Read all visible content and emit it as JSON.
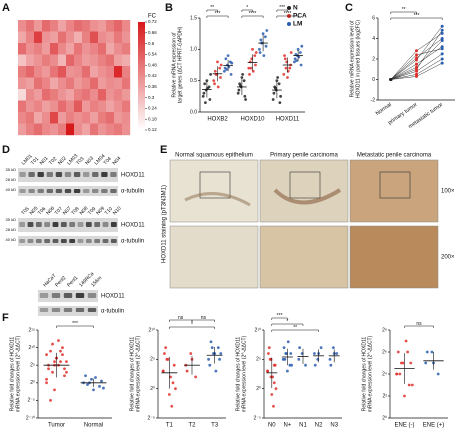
{
  "figure": {
    "panel_labels": [
      "A",
      "B",
      "C",
      "D",
      "E",
      "F"
    ],
    "blots": {
      "lanes_1": [
        "LM01",
        "T01",
        "N01",
        "T02",
        "N02",
        "LM03",
        "T03",
        "N03",
        "LM04",
        "T04",
        "N04"
      ],
      "lanes_2": [
        "T05",
        "N05",
        "T06",
        "N06",
        "T07",
        "N07",
        "T08",
        "N08",
        "T09",
        "N09",
        "T10",
        "N10"
      ],
      "lanes_3": [
        "HaCaT",
        "Penl2",
        "Penl1",
        "149RCa",
        "156m"
      ],
      "proteins": [
        "HOXD11",
        "α-tubulin"
      ],
      "markers": [
        "35 kD",
        "28 kD",
        "40 kD"
      ]
    },
    "ihc": {
      "columns": [
        "Normal squamous epithelium",
        "Primary penile carcinoma",
        "Metastatic penile carcinoma"
      ],
      "magnifications": [
        "100×",
        "200×"
      ],
      "side_label": "HOXD11 staining (pT3N3M1)"
    }
  },
  "chart_data": [
    {
      "type": "heatmap",
      "colorbar_title": "FC",
      "vlim": [
        0.12,
        0.72
      ],
      "colorbar_ticks": [
        0.72,
        0.66,
        0.6,
        0.54,
        0.48,
        0.42,
        0.36,
        0.3,
        0.24,
        0.18,
        0.12
      ],
      "colors": [
        "#ffffff",
        "#d7191c"
      ],
      "values": [
        [
          0.42,
          0.48,
          0.39,
          0.51,
          0.45,
          0.36,
          0.44,
          0.5,
          0.47,
          0.41,
          0.38,
          0.46,
          0.52,
          0.43
        ],
        [
          0.35,
          0.44,
          0.62,
          0.4,
          0.37,
          0.49,
          0.41,
          0.33,
          0.45,
          0.58,
          0.42,
          0.39,
          0.47,
          0.4
        ],
        [
          0.5,
          0.41,
          0.45,
          0.38,
          0.55,
          0.43,
          0.36,
          0.48,
          0.4,
          0.44,
          0.5,
          0.35,
          0.42,
          0.46
        ],
        [
          0.28,
          0.36,
          0.4,
          0.46,
          0.42,
          0.31,
          0.52,
          0.44,
          0.38,
          0.4,
          0.45,
          0.49,
          0.37,
          0.34
        ],
        [
          0.46,
          0.52,
          0.43,
          0.39,
          0.48,
          0.56,
          0.4,
          0.42,
          0.5,
          0.36,
          0.41,
          0.44,
          0.68,
          0.45
        ],
        [
          0.4,
          0.37,
          0.49,
          0.44,
          0.35,
          0.42,
          0.47,
          0.39,
          0.43,
          0.51,
          0.38,
          0.42,
          0.4,
          0.48
        ],
        [
          0.22,
          0.43,
          0.38,
          0.5,
          0.46,
          0.4,
          0.36,
          0.45,
          0.48,
          0.42,
          0.53,
          0.4,
          0.44,
          0.39
        ],
        [
          0.48,
          0.4,
          0.44,
          0.37,
          0.41,
          0.5,
          0.43,
          0.55,
          0.39,
          0.45,
          0.42,
          0.36,
          0.41,
          0.47
        ],
        [
          0.43,
          0.47,
          0.35,
          0.42,
          0.6,
          0.38,
          0.45,
          0.41,
          0.44,
          0.37,
          0.46,
          0.5,
          0.39,
          0.42
        ],
        [
          0.38,
          0.45,
          0.5,
          0.43,
          0.4,
          0.46,
          0.72,
          0.42,
          0.36,
          0.48,
          0.4,
          0.44,
          0.47,
          0.41
        ]
      ]
    },
    {
      "type": "strip",
      "ylabel": [
        "Relative mRNA expression of",
        "target genes (ΔCT HPRT-GAPDH)"
      ],
      "categories": [
        "HOXB2",
        "HOXD10",
        "HOXD11"
      ],
      "ylim": [
        0,
        1.5
      ],
      "yticks": [
        {
          "value": 0,
          "label": "0.0"
        },
        {
          "value": 0.5,
          "label": "0.5"
        },
        {
          "value": 1,
          "label": "1.0"
        },
        {
          "value": 1.5,
          "label": "1.5"
        }
      ],
      "legend": "top-right",
      "series": [
        {
          "name": "N",
          "color": "#222222",
          "values": [
            [
              0.25,
              0.35,
              0.4,
              0.3,
              0.5,
              0.2,
              0.45,
              0.38,
              0.6,
              0.15
            ],
            [
              0.3,
              0.4,
              0.5,
              0.35,
              0.55,
              0.25,
              0.45,
              0.6,
              0.2,
              0.42
            ],
            [
              0.2,
              0.35,
              0.45,
              0.3,
              0.5,
              0.15,
              0.4,
              0.55,
              0.25,
              0.38
            ]
          ],
          "summary": [
            [
              0.36,
              0.13
            ],
            [
              0.4,
              0.13
            ],
            [
              0.35,
              0.13
            ]
          ]
        },
        {
          "name": "PCA",
          "color": "#e0302b",
          "values": [
            [
              0.5,
              0.6,
              0.7,
              0.45,
              0.8,
              0.55,
              0.65,
              0.4,
              0.75,
              0.6
            ],
            [
              0.7,
              0.85,
              0.9,
              0.6,
              1.0,
              0.75,
              0.8,
              0.65,
              0.95,
              0.7
            ],
            [
              0.6,
              0.8,
              0.7,
              0.9,
              0.55,
              0.75,
              0.85,
              0.65,
              0.95,
              0.7
            ]
          ],
          "summary": [
            [
              0.61,
              0.12
            ],
            [
              0.79,
              0.13
            ],
            [
              0.75,
              0.12
            ]
          ]
        },
        {
          "name": "LM",
          "color": "#2a5db0",
          "values": [
            [
              0.65,
              0.75,
              0.8,
              0.7,
              0.9,
              0.6,
              0.85,
              0.72,
              0.78,
              0.68
            ],
            [
              1.0,
              1.1,
              1.2,
              0.95,
              1.25,
              1.05,
              1.15,
              0.9,
              1.3,
              1.1
            ],
            [
              0.8,
              0.9,
              0.95,
              0.85,
              1.0,
              0.75,
              0.92,
              0.88,
              1.05,
              0.82
            ]
          ],
          "summary": [
            [
              0.74,
              0.09
            ],
            [
              1.1,
              0.13
            ],
            [
              0.9,
              0.09
            ]
          ]
        }
      ],
      "annotations": [
        "**",
        "***",
        "*",
        "****",
        "***",
        "****"
      ]
    },
    {
      "type": "paired",
      "ylabel": [
        "Relative mRNA expression level of",
        "HOXD11 in paired tissues (log2FC)"
      ],
      "categories": [
        "Normal",
        "primary tumor",
        "metastatic tumor"
      ],
      "colors": [
        "#222222",
        "#e0302b",
        "#2a5db0"
      ],
      "ylim": [
        -2,
        6
      ],
      "yticks": [
        -2,
        0,
        2,
        4,
        6
      ],
      "pairs": [
        [
          0,
          1.5,
          3.2
        ],
        [
          0,
          2.1,
          4.0
        ],
        [
          0,
          0.8,
          2.5
        ],
        [
          0,
          2.8,
          4.5
        ],
        [
          0,
          1.2,
          3.8
        ],
        [
          0,
          0.5,
          2.0
        ],
        [
          0,
          1.9,
          5.2
        ],
        [
          0,
          2.4,
          3.0
        ],
        [
          0,
          1.0,
          4.8
        ],
        [
          0,
          0.3,
          1.6
        ]
      ],
      "annotations": [
        "**",
        "***"
      ]
    },
    {
      "type": "strip",
      "ylabel": [
        "Relative fold changes of HOXD11",
        "mRNA expression level (2^-ΔΔCT)"
      ],
      "categories": [
        "Tumor",
        "Normal"
      ],
      "colors": [
        "#e0302b",
        "#2a5db0"
      ],
      "ylim": [
        -10,
        15
      ],
      "yticks": [
        {
          "value": -10,
          "label": "2⁻¹⁰"
        },
        {
          "value": -5,
          "label": "2⁻⁵"
        },
        {
          "value": 0,
          "label": "2⁰"
        },
        {
          "value": 5,
          "label": "2⁵"
        },
        {
          "value": 10,
          "label": "2¹⁰"
        },
        {
          "value": 15,
          "label": "2¹⁵"
        }
      ],
      "series": [
        {
          "values": [
            [
              8,
              6,
              10,
              4,
              7,
              2,
              9,
              5,
              3,
              11,
              6,
              1,
              -2,
              8,
              5,
              7,
              4,
              -5,
              12,
              6,
              3,
              9,
              0,
              5
            ],
            [
              0,
              1,
              -1,
              2,
              -2,
              0.5,
              -0.5,
              1.5,
              -1.5,
              0
            ]
          ],
          "summary": [
            [
              5,
              3.5
            ],
            [
              0,
              1.2
            ]
          ]
        }
      ],
      "annotations": [
        "***"
      ]
    },
    {
      "type": "strip",
      "ylabel": [
        "Relative fold changes of HOXD11",
        "mRNA expression level (2^-ΔΔCT)"
      ],
      "categories": [
        "T1",
        "T2",
        "T3"
      ],
      "colors": [
        "#e0302b",
        "#e0302b",
        "#2a5db0"
      ],
      "ylim": [
        -5,
        10
      ],
      "yticks": [
        {
          "value": -5,
          "label": "2⁻⁵"
        },
        {
          "value": 0,
          "label": "2⁰"
        },
        {
          "value": 5,
          "label": "2⁵"
        },
        {
          "value": 10,
          "label": "2¹⁰"
        }
      ],
      "series": [
        {
          "values": [
            [
              3,
              5,
              1,
              6,
              -1,
              4,
              7,
              2,
              0,
              5,
              -3,
              3
            ],
            [
              4,
              6,
              2,
              3,
              5
            ],
            [
              5,
              6,
              7,
              4,
              6,
              5,
              8,
              3,
              6,
              7
            ]
          ],
          "summary": [
            [
              2.7,
              2.7
            ],
            [
              4,
              1.6
            ],
            [
              5.7,
              1.4
            ]
          ]
        }
      ],
      "annotations": [
        "ns",
        "ns",
        "*"
      ]
    },
    {
      "type": "strip",
      "ylabel": [
        "Relative fold changes of HOXD11",
        "mRNA expression level (2^-ΔΔCT)"
      ],
      "categories": [
        "N0",
        "N+",
        "N1",
        "N2",
        "N3"
      ],
      "colors": [
        "#e0302b",
        "#2a5db0",
        "#2a5db0",
        "#2a5db0",
        "#2a5db0"
      ],
      "ylim": [
        -5,
        10
      ],
      "yticks": [
        {
          "value": -5,
          "label": "2⁻⁵"
        },
        {
          "value": 0,
          "label": "2⁰"
        },
        {
          "value": 5,
          "label": "2⁵"
        },
        {
          "value": 10,
          "label": "2¹⁰"
        }
      ],
      "series": [
        {
          "values": [
            [
              3,
              5,
              1,
              6,
              -1,
              4,
              7,
              2,
              0,
              5,
              -3,
              3,
              2,
              4
            ],
            [
              5,
              6,
              4,
              7,
              3,
              6,
              5,
              8,
              4,
              6
            ],
            [
              5,
              6,
              4,
              7
            ],
            [
              6,
              5,
              7,
              4,
              6
            ],
            [
              5,
              7,
              6,
              4,
              6
            ]
          ],
          "summary": [
            [
              2.7,
              2.6
            ],
            [
              5.4,
              1.4
            ],
            [
              5.5,
              1.3
            ],
            [
              5.6,
              1.1
            ],
            [
              5.6,
              1.1
            ]
          ]
        }
      ],
      "annotations": [
        "***",
        "*",
        "**"
      ]
    },
    {
      "type": "strip",
      "ylabel": [
        "Relative fold changes of HOXD11",
        "mRNA expression level (2^-ΔΔCT)"
      ],
      "categories": [
        "ENE (-)",
        "ENE (+)"
      ],
      "colors": [
        "#e0302b",
        "#2a5db0"
      ],
      "ylim": [
        0,
        8
      ],
      "yticks": [
        {
          "value": 0,
          "label": "2⁰"
        },
        {
          "value": 2,
          "label": "2²"
        },
        {
          "value": 4,
          "label": "2⁴"
        },
        {
          "value": 6,
          "label": "2⁶"
        },
        {
          "value": 8,
          "label": "2⁸"
        }
      ],
      "series": [
        {
          "values": [
            [
              4,
              5,
              3,
              6,
              2,
              5,
              4,
              7,
              3,
              5,
              6,
              4
            ],
            [
              5,
              6,
              4,
              6,
              5
            ]
          ],
          "summary": [
            [
              4.5,
              1.4
            ],
            [
              5.2,
              0.8
            ]
          ]
        }
      ],
      "annotations": [
        "ns"
      ]
    }
  ]
}
